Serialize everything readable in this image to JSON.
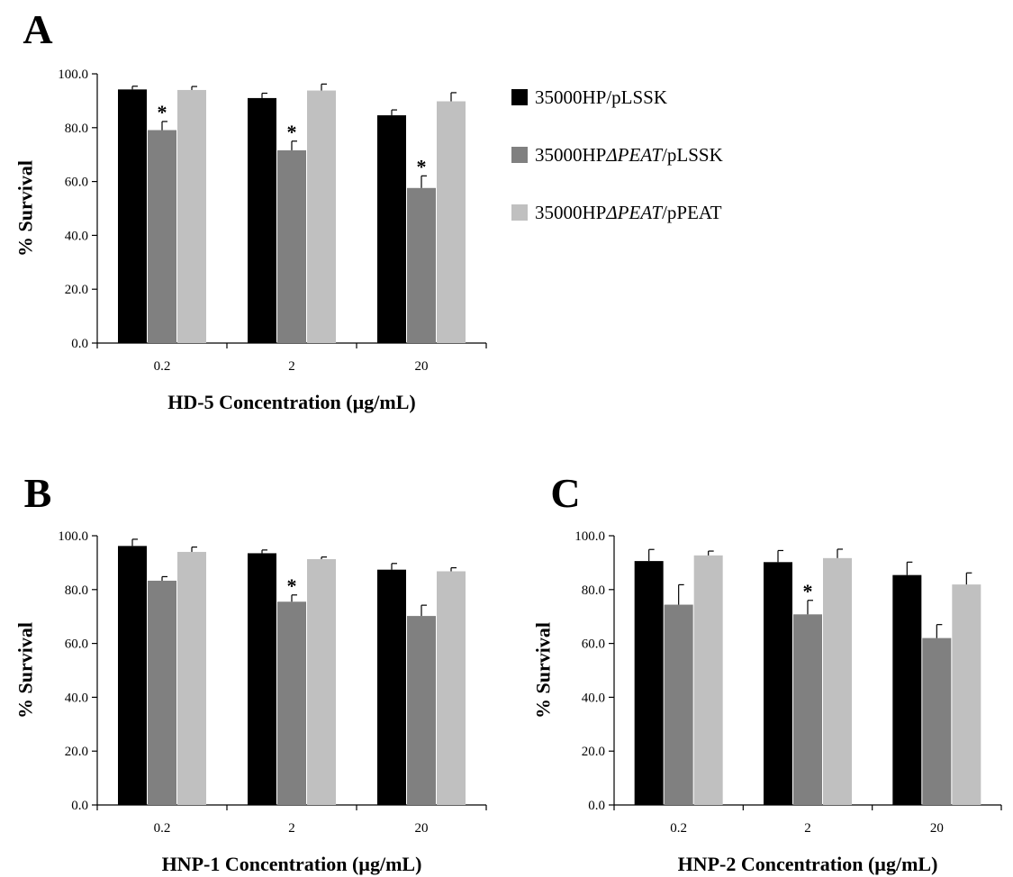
{
  "panels_label": "multi-panel survival bar charts",
  "legend": [
    {
      "parts": [
        {
          "t": "35000HP/pLSSK",
          "i": false
        }
      ],
      "color": "#000000"
    },
    {
      "parts": [
        {
          "t": "35000HP",
          "i": false
        },
        {
          "t": "ΔPEAT",
          "i": true
        },
        {
          "t": "/pLSSK",
          "i": false
        }
      ],
      "color": "#808080"
    },
    {
      "parts": [
        {
          "t": "35000HP",
          "i": false
        },
        {
          "t": "ΔPEAT",
          "i": true
        },
        {
          "t": "/pPEAT",
          "i": false
        }
      ],
      "color": "#c0c0c0"
    }
  ],
  "colors": {
    "series1": "#000000",
    "series2": "#808080",
    "series3": "#c0c0c0"
  },
  "chart_data": [
    {
      "type": "bar",
      "panel": "A",
      "categories": [
        "0.2",
        "2",
        "20"
      ],
      "xlabel": "HD-5 Concentration (µg/mL)",
      "ylabel": "% Survival",
      "ylim": [
        0,
        100
      ],
      "yticks": [
        "0.0",
        "20.0",
        "40.0",
        "60.0",
        "80.0",
        "100.0"
      ],
      "series": [
        {
          "values": [
            94.2,
            91.0,
            84.6
          ],
          "errors": [
            1.2,
            1.8,
            2.0
          ]
        },
        {
          "values": [
            79.1,
            71.6,
            57.6
          ],
          "errors": [
            3.2,
            3.4,
            4.5
          ]
        },
        {
          "values": [
            94.0,
            93.8,
            89.8
          ],
          "errors": [
            1.3,
            2.4,
            3.2
          ]
        }
      ],
      "significance": [
        {
          "series": 1,
          "category": 0,
          "label": "*"
        },
        {
          "series": 1,
          "category": 1,
          "label": "*"
        },
        {
          "series": 1,
          "category": 2,
          "label": "*"
        }
      ]
    },
    {
      "type": "bar",
      "panel": "B",
      "categories": [
        "0.2",
        "2",
        "20"
      ],
      "xlabel": "HNP-1 Concentration (µg/mL)",
      "ylabel": "% Survival",
      "ylim": [
        0,
        100
      ],
      "yticks": [
        "0.0",
        "20.0",
        "40.0",
        "60.0",
        "80.0",
        "100.0"
      ],
      "series": [
        {
          "values": [
            96.2,
            93.5,
            87.4
          ],
          "errors": [
            2.5,
            1.2,
            2.3
          ]
        },
        {
          "values": [
            83.3,
            75.5,
            70.2
          ],
          "errors": [
            1.5,
            2.5,
            4.0
          ]
        },
        {
          "values": [
            94.0,
            91.3,
            86.8
          ],
          "errors": [
            1.8,
            0.8,
            1.3
          ]
        }
      ],
      "significance": [
        {
          "series": 1,
          "category": 1,
          "label": "*"
        }
      ]
    },
    {
      "type": "bar",
      "panel": "C",
      "categories": [
        "0.2",
        "2",
        "20"
      ],
      "xlabel": "HNP-2 Concentration (µg/mL)",
      "ylabel": "% Survival",
      "ylim": [
        0,
        100
      ],
      "yticks": [
        "0.0",
        "20.0",
        "40.0",
        "60.0",
        "80.0",
        "100.0"
      ],
      "series": [
        {
          "values": [
            90.6,
            90.2,
            85.4
          ],
          "errors": [
            4.3,
            4.3,
            4.8
          ]
        },
        {
          "values": [
            74.4,
            70.8,
            62.0
          ],
          "errors": [
            7.4,
            5.2,
            5.0
          ]
        },
        {
          "values": [
            92.7,
            91.7,
            81.9
          ],
          "errors": [
            1.6,
            3.3,
            4.3
          ]
        }
      ],
      "significance": [
        {
          "series": 1,
          "category": 1,
          "label": "*"
        }
      ]
    }
  ]
}
